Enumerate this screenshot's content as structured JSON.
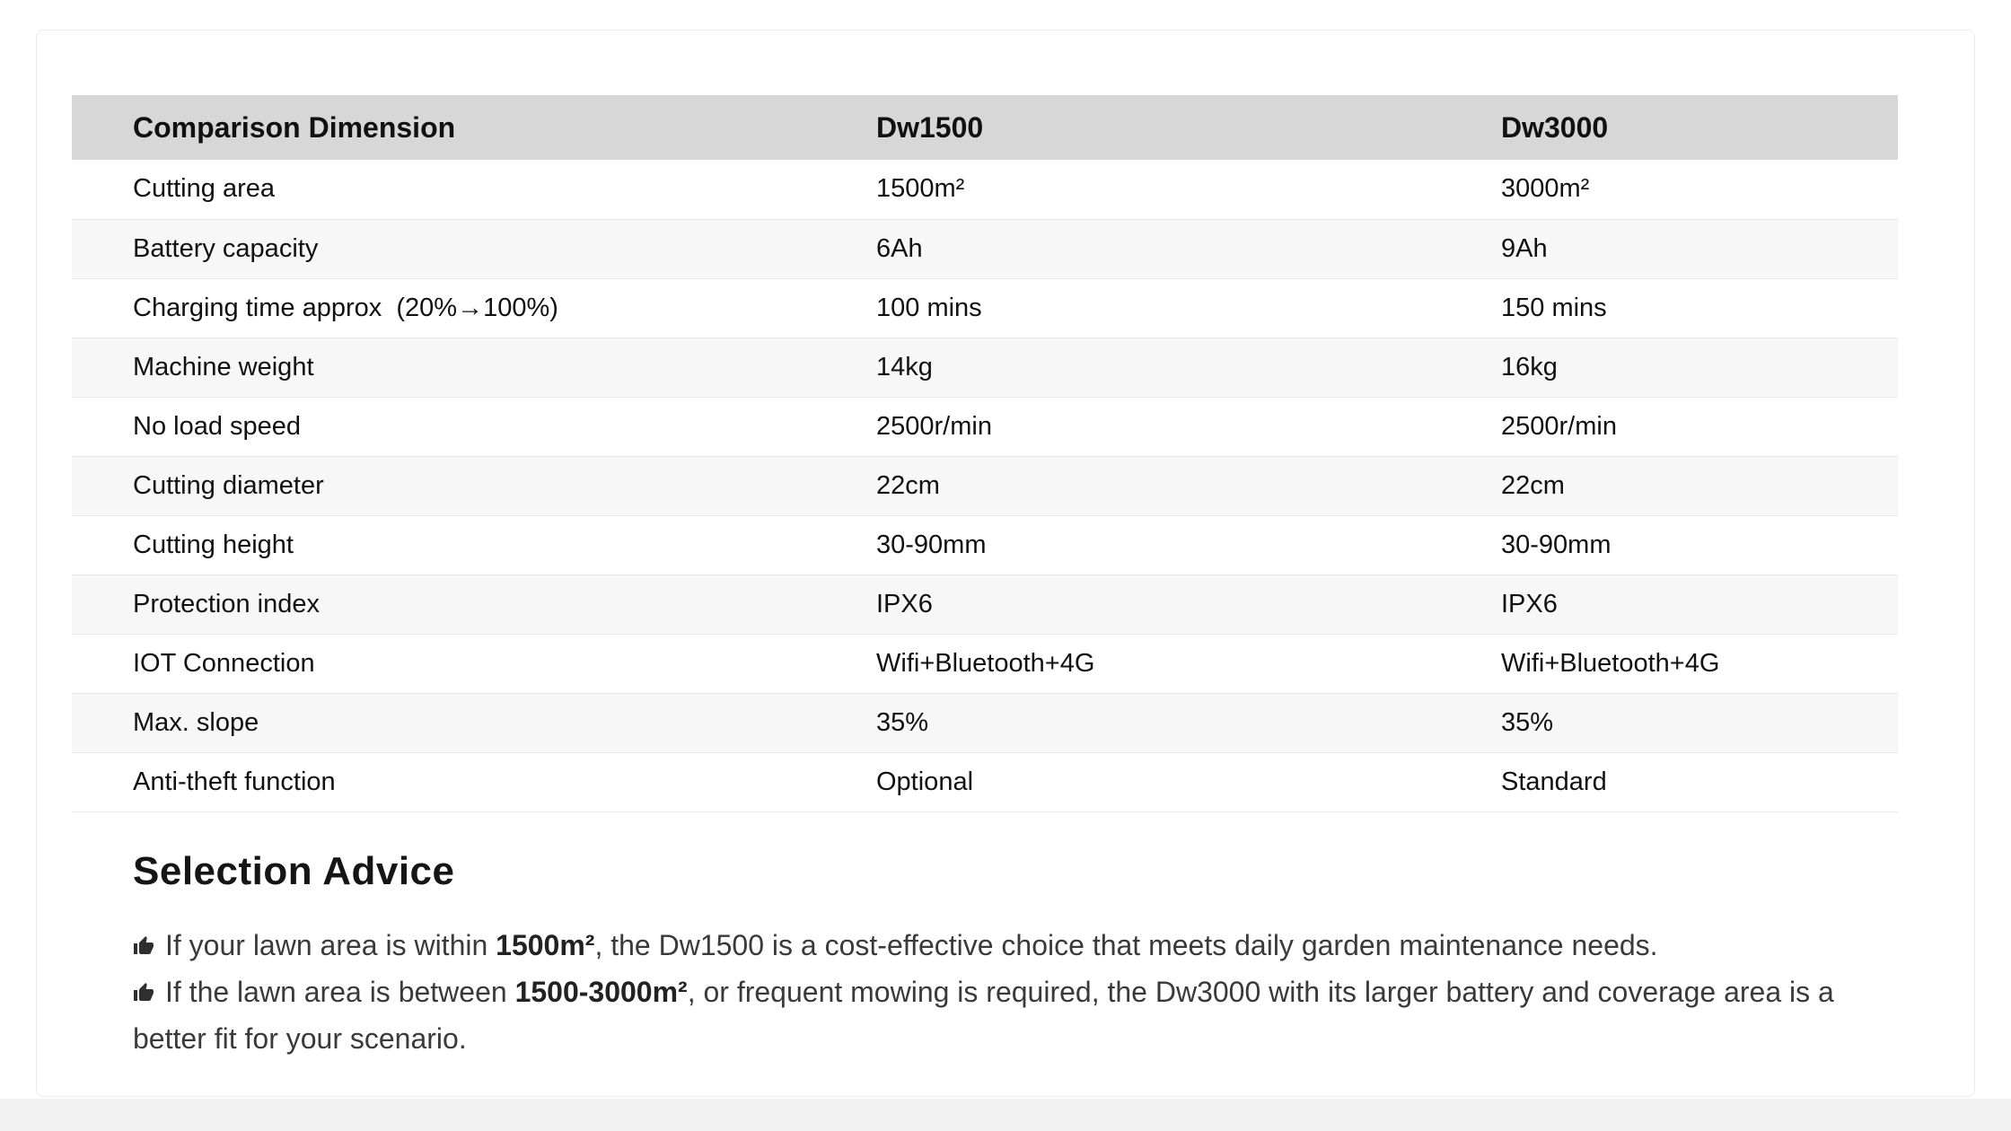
{
  "colors": {
    "page_bg": "#ffffff",
    "footer_strip_bg": "#f1f1f1",
    "card_border": "#ececec",
    "header_bg": "#d7d7d7",
    "alt_row_bg": "#f7f7f7",
    "row_border": "#e9e9e9",
    "table_text": "#111111",
    "advice_text": "#3a3a3a"
  },
  "table": {
    "columns": [
      "Comparison Dimension",
      "Dw1500",
      "Dw3000"
    ],
    "rows": [
      {
        "label": "Cutting area",
        "values": [
          "1500m²",
          "3000m²"
        ]
      },
      {
        "label": "Battery capacity",
        "values": [
          "6Ah",
          "9Ah"
        ]
      },
      {
        "label": "Charging time approx  (20%→100%)",
        "values": [
          "100 mins",
          "150 mins"
        ]
      },
      {
        "label": "Machine weight",
        "values": [
          "14kg",
          "16kg"
        ]
      },
      {
        "label": "No load speed",
        "values": [
          "2500r/min",
          "2500r/min"
        ]
      },
      {
        "label": "Cutting diameter",
        "values": [
          "22cm",
          "22cm"
        ]
      },
      {
        "label": "Cutting height",
        "values": [
          "30-90mm",
          "30-90mm"
        ]
      },
      {
        "label": "Protection index",
        "values": [
          "IPX6",
          "IPX6"
        ]
      },
      {
        "label": "IOT Connection",
        "values": [
          "Wifi+Bluetooth+4G",
          "Wifi+Bluetooth+4G"
        ]
      },
      {
        "label": "Max. slope",
        "values": [
          "35%",
          "35%"
        ]
      },
      {
        "label": "Anti-theft function",
        "values": [
          "Optional",
          "Standard"
        ]
      }
    ]
  },
  "advice": {
    "title": "Selection Advice",
    "bullet_icon": "thumbs-up-icon",
    "items": [
      {
        "segments": [
          {
            "text": "If your lawn area is within ",
            "bold": false
          },
          {
            "text": "1500m²",
            "bold": true
          },
          {
            "text": ", the Dw1500 is a cost-effective choice that meets daily garden maintenance needs.",
            "bold": false
          }
        ]
      },
      {
        "segments": [
          {
            "text": "If the lawn area is between ",
            "bold": false
          },
          {
            "text": "1500-3000m²",
            "bold": true
          },
          {
            "text": ", or frequent mowing is required, the Dw3000 with its larger battery and coverage area is a better fit for your scenario.",
            "bold": false
          }
        ]
      }
    ]
  }
}
